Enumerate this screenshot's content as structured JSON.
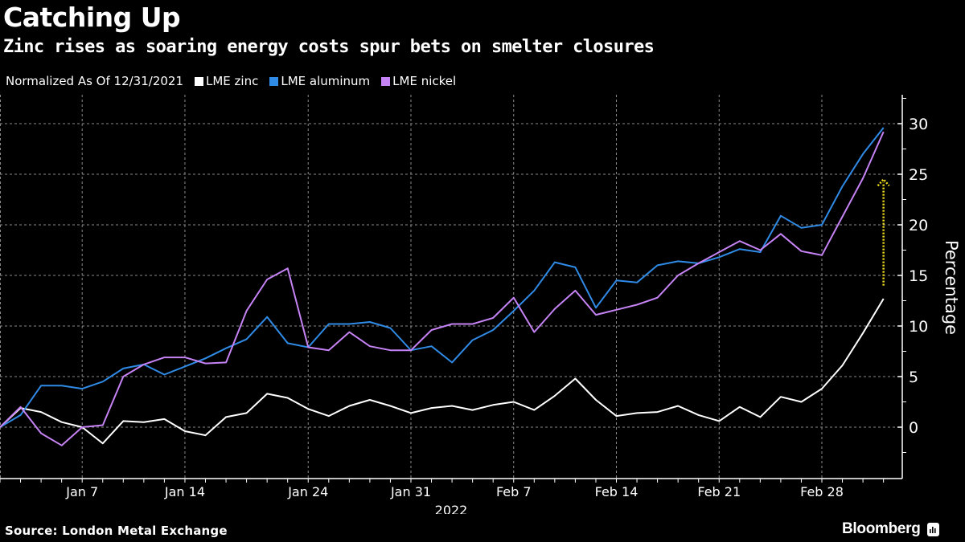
{
  "header": {
    "title": "Catching Up",
    "subtitle": "Zinc rises as soaring energy costs spur bets on smelter closures"
  },
  "legend": {
    "note": "Normalized As Of 12/31/2021",
    "items": [
      {
        "label": "LME zinc",
        "color": "#ffffff"
      },
      {
        "label": "LME aluminum",
        "color": "#2f8be6"
      },
      {
        "label": "LME nickel",
        "color": "#c683f5"
      }
    ]
  },
  "footer": {
    "source": "Source: London Metal Exchange",
    "brand": "Bloomberg"
  },
  "chart_data": {
    "type": "line",
    "title": "Catching Up",
    "subtitle": "Zinc rises as soaring energy costs spur bets on smelter closures",
    "xlabel": "2022",
    "ylabel": "Percentage",
    "ylim": [
      -5,
      33
    ],
    "yticks": [
      0,
      5,
      10,
      15,
      20,
      25,
      30
    ],
    "ytick_labels": [
      "0",
      "5",
      "10",
      "15",
      "20",
      "25",
      "30"
    ],
    "grid": true,
    "legend_position": "top-left",
    "x_tick_labels": [
      {
        "label": "Jan 7",
        "index": 4
      },
      {
        "label": "Jan 14",
        "index": 9
      },
      {
        "label": "Jan 24",
        "index": 15
      },
      {
        "label": "Jan 31",
        "index": 20
      },
      {
        "label": "Feb 7",
        "index": 25
      },
      {
        "label": "Feb 14",
        "index": 30
      },
      {
        "label": "Feb 21",
        "index": 35
      },
      {
        "label": "Feb 28",
        "index": 40
      }
    ],
    "x": [
      "2021-12-31",
      "2022-01-04",
      "2022-01-05",
      "2022-01-06",
      "2022-01-07",
      "2022-01-10",
      "2022-01-11",
      "2022-01-12",
      "2022-01-13",
      "2022-01-14",
      "2022-01-17",
      "2022-01-18",
      "2022-01-19",
      "2022-01-20",
      "2022-01-21",
      "2022-01-24",
      "2022-01-25",
      "2022-01-26",
      "2022-01-27",
      "2022-01-28",
      "2022-01-31",
      "2022-02-01",
      "2022-02-02",
      "2022-02-03",
      "2022-02-04",
      "2022-02-07",
      "2022-02-08",
      "2022-02-09",
      "2022-02-10",
      "2022-02-11",
      "2022-02-14",
      "2022-02-15",
      "2022-02-16",
      "2022-02-17",
      "2022-02-18",
      "2022-02-21",
      "2022-02-22",
      "2022-02-23",
      "2022-02-24",
      "2022-02-25",
      "2022-02-28",
      "2022-03-01",
      "2022-03-02",
      "2022-03-03"
    ],
    "series": [
      {
        "name": "LME zinc",
        "color": "#ffffff",
        "values": [
          0,
          1.9,
          1.5,
          0.5,
          0,
          -1.6,
          0.6,
          0.5,
          0.8,
          -0.4,
          -0.8,
          1.0,
          1.4,
          3.3,
          2.9,
          1.8,
          1.1,
          2.1,
          2.7,
          2.1,
          1.4,
          1.9,
          2.1,
          1.7,
          2.2,
          2.5,
          1.7,
          3.1,
          4.8,
          2.7,
          1.1,
          1.4,
          1.5,
          2.1,
          1.2,
          0.6,
          2.0,
          1.0,
          3.0,
          2.5,
          3.8,
          6.1,
          9.3,
          12.7
        ]
      },
      {
        "name": "LME aluminum",
        "color": "#2f8be6",
        "values": [
          0,
          1.2,
          4.1,
          4.1,
          3.8,
          4.5,
          5.8,
          6.2,
          5.2,
          6.0,
          6.8,
          7.8,
          8.7,
          10.9,
          8.3,
          7.9,
          10.2,
          10.2,
          10.4,
          9.8,
          7.6,
          8.0,
          6.4,
          8.6,
          9.6,
          11.5,
          13.5,
          16.3,
          15.8,
          11.8,
          14.5,
          14.3,
          16.0,
          16.4,
          16.2,
          16.8,
          17.6,
          17.3,
          20.9,
          19.7,
          20.0,
          23.8,
          27.0,
          29.6
        ]
      },
      {
        "name": "LME nickel",
        "color": "#c683f5",
        "values": [
          0,
          2.0,
          -0.6,
          -1.8,
          0,
          0.2,
          5.0,
          6.2,
          6.9,
          6.9,
          6.3,
          6.4,
          11.5,
          14.6,
          15.7,
          7.9,
          7.6,
          9.4,
          8.0,
          7.6,
          7.6,
          9.6,
          10.2,
          10.2,
          10.8,
          12.8,
          9.4,
          11.7,
          13.5,
          11.1,
          11.6,
          12.1,
          12.8,
          15.0,
          16.2,
          17.3,
          18.4,
          17.5,
          19.1,
          17.4,
          17.0,
          20.8,
          24.6,
          29.2
        ]
      }
    ],
    "annotations": [
      {
        "type": "arrow",
        "style": "dotted",
        "color": "#f5e11b",
        "at_index": 43,
        "from_value": 14,
        "to_value": 24.5
      }
    ]
  }
}
